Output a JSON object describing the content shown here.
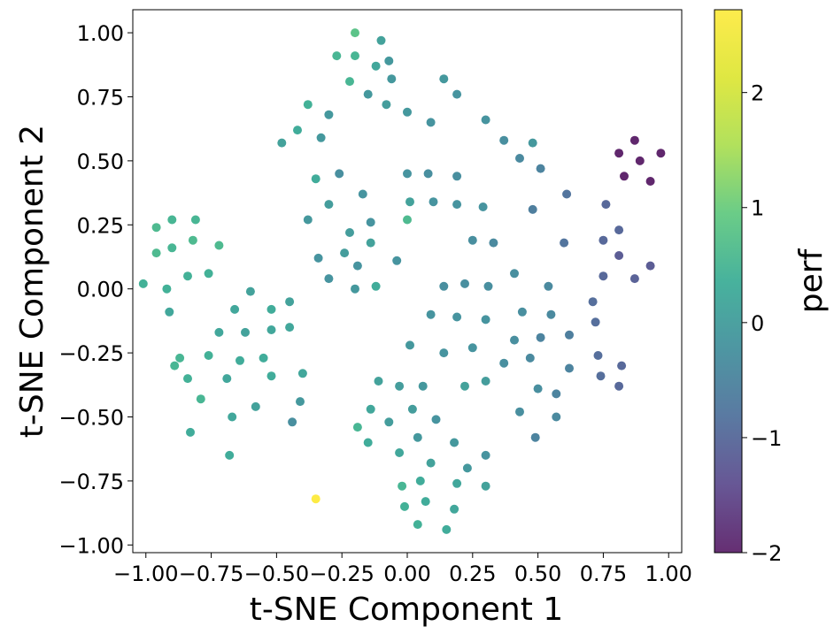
{
  "chart_data": {
    "type": "scatter",
    "xlabel": "t-SNE Component 1",
    "ylabel": "t-SNE Component 2",
    "xlim": [
      -1.05,
      1.05
    ],
    "ylim": [
      -1.03,
      1.09
    ],
    "xticks": [
      -1.0,
      -0.75,
      -0.5,
      -0.25,
      0.0,
      0.25,
      0.5,
      0.75,
      1.0
    ],
    "xtick_labels": [
      "−1.00",
      "−0.75",
      "−0.50",
      "−0.25",
      "0.00",
      "0.25",
      "0.50",
      "0.75",
      "1.00"
    ],
    "yticks": [
      1.0,
      0.75,
      0.5,
      0.25,
      0.0,
      -0.25,
      -0.5,
      -0.75,
      -1.0
    ],
    "ytick_labels": [
      "1.00",
      "0.75",
      "0.50",
      "0.25",
      "0.00",
      "−0.25",
      "−0.50",
      "−0.75",
      "−1.00"
    ],
    "colorbar": {
      "label": "perf",
      "range": [
        -2.0,
        2.72
      ],
      "colormap": "viridis",
      "ticks": [
        2,
        1,
        0,
        -1,
        -2
      ],
      "tick_labels": [
        "2",
        "1",
        "0",
        "−1",
        "−2"
      ]
    },
    "grid": false,
    "points": [
      {
        "x": -0.2,
        "y": 1.0,
        "c": 0.8
      },
      {
        "x": -0.1,
        "y": 0.97,
        "c": 0.1
      },
      {
        "x": -0.27,
        "y": 0.91,
        "c": 0.5
      },
      {
        "x": -0.2,
        "y": 0.91,
        "c": 0.5
      },
      {
        "x": -0.12,
        "y": 0.87,
        "c": 0.2
      },
      {
        "x": -0.07,
        "y": 0.89,
        "c": -0.1
      },
      {
        "x": -0.22,
        "y": 0.81,
        "c": 0.5
      },
      {
        "x": -0.06,
        "y": 0.82,
        "c": -0.1
      },
      {
        "x": 0.14,
        "y": 0.82,
        "c": -0.1
      },
      {
        "x": -0.15,
        "y": 0.76,
        "c": -0.1
      },
      {
        "x": 0.19,
        "y": 0.76,
        "c": -0.2
      },
      {
        "x": -0.38,
        "y": 0.72,
        "c": 0.4
      },
      {
        "x": -0.08,
        "y": 0.72,
        "c": 0.0
      },
      {
        "x": 0.0,
        "y": 0.69,
        "c": -0.1
      },
      {
        "x": -0.3,
        "y": 0.68,
        "c": -0.1
      },
      {
        "x": 0.09,
        "y": 0.65,
        "c": -0.2
      },
      {
        "x": 0.3,
        "y": 0.66,
        "c": -0.2
      },
      {
        "x": -0.42,
        "y": 0.62,
        "c": 0.3
      },
      {
        "x": -0.33,
        "y": 0.59,
        "c": -0.1
      },
      {
        "x": -0.48,
        "y": 0.57,
        "c": 0.1
      },
      {
        "x": 0.37,
        "y": 0.58,
        "c": -0.3
      },
      {
        "x": 0.48,
        "y": 0.57,
        "c": -0.1
      },
      {
        "x": 0.43,
        "y": 0.51,
        "c": -0.4
      },
      {
        "x": 0.51,
        "y": 0.47,
        "c": -0.5
      },
      {
        "x": 0.81,
        "y": 0.53,
        "c": -2.0
      },
      {
        "x": 0.87,
        "y": 0.58,
        "c": -2.0
      },
      {
        "x": 0.97,
        "y": 0.53,
        "c": -2.0
      },
      {
        "x": 0.89,
        "y": 0.5,
        "c": -2.0
      },
      {
        "x": 0.83,
        "y": 0.44,
        "c": -2.0
      },
      {
        "x": 0.93,
        "y": 0.42,
        "c": -2.0
      },
      {
        "x": -0.35,
        "y": 0.43,
        "c": 0.3
      },
      {
        "x": -0.26,
        "y": 0.45,
        "c": -0.3
      },
      {
        "x": 0.0,
        "y": 0.45,
        "c": -0.2
      },
      {
        "x": 0.08,
        "y": 0.45,
        "c": -0.3
      },
      {
        "x": 0.19,
        "y": 0.44,
        "c": -0.3
      },
      {
        "x": -0.17,
        "y": 0.37,
        "c": -0.2
      },
      {
        "x": 0.61,
        "y": 0.37,
        "c": -0.8
      },
      {
        "x": -0.3,
        "y": 0.33,
        "c": 0.0
      },
      {
        "x": 0.01,
        "y": 0.34,
        "c": 0.1
      },
      {
        "x": 0.1,
        "y": 0.34,
        "c": -0.2
      },
      {
        "x": 0.19,
        "y": 0.33,
        "c": -0.2
      },
      {
        "x": 0.29,
        "y": 0.32,
        "c": -0.2
      },
      {
        "x": 0.48,
        "y": 0.31,
        "c": -0.6
      },
      {
        "x": 0.76,
        "y": 0.33,
        "c": -1.0
      },
      {
        "x": -0.38,
        "y": 0.27,
        "c": -0.1
      },
      {
        "x": -0.14,
        "y": 0.26,
        "c": -0.2
      },
      {
        "x": 0.0,
        "y": 0.27,
        "c": 0.6
      },
      {
        "x": -0.22,
        "y": 0.22,
        "c": 0.0
      },
      {
        "x": 0.81,
        "y": 0.23,
        "c": -1.0
      },
      {
        "x": 0.25,
        "y": 0.19,
        "c": -0.3
      },
      {
        "x": 0.33,
        "y": 0.18,
        "c": -0.4
      },
      {
        "x": 0.6,
        "y": 0.18,
        "c": -0.8
      },
      {
        "x": 0.75,
        "y": 0.19,
        "c": -1.0
      },
      {
        "x": -0.14,
        "y": 0.18,
        "c": 0.1
      },
      {
        "x": -0.24,
        "y": 0.14,
        "c": 0.0
      },
      {
        "x": -0.34,
        "y": 0.12,
        "c": -0.2
      },
      {
        "x": -0.04,
        "y": 0.11,
        "c": -0.2
      },
      {
        "x": -0.19,
        "y": 0.09,
        "c": -0.2
      },
      {
        "x": 0.81,
        "y": 0.13,
        "c": -1.2
      },
      {
        "x": 0.93,
        "y": 0.09,
        "c": -1.2
      },
      {
        "x": -0.3,
        "y": 0.04,
        "c": -0.2
      },
      {
        "x": 0.41,
        "y": 0.06,
        "c": -0.3
      },
      {
        "x": 0.75,
        "y": 0.05,
        "c": -1.0
      },
      {
        "x": 0.87,
        "y": 0.04,
        "c": -1.1
      },
      {
        "x": -0.12,
        "y": 0.01,
        "c": 0.3
      },
      {
        "x": -0.2,
        "y": 0.0,
        "c": -0.1
      },
      {
        "x": 0.14,
        "y": 0.01,
        "c": -0.3
      },
      {
        "x": 0.22,
        "y": 0.02,
        "c": -0.3
      },
      {
        "x": 0.31,
        "y": 0.01,
        "c": -0.3
      },
      {
        "x": 0.54,
        "y": 0.01,
        "c": -0.4
      },
      {
        "x": -0.96,
        "y": 0.24,
        "c": 0.6
      },
      {
        "x": -0.9,
        "y": 0.27,
        "c": 0.5
      },
      {
        "x": -0.81,
        "y": 0.27,
        "c": 0.5
      },
      {
        "x": -0.96,
        "y": 0.14,
        "c": 0.6
      },
      {
        "x": -0.9,
        "y": 0.16,
        "c": 0.5
      },
      {
        "x": -0.82,
        "y": 0.19,
        "c": 0.6
      },
      {
        "x": -0.72,
        "y": 0.17,
        "c": 0.6
      },
      {
        "x": -1.01,
        "y": 0.02,
        "c": 0.4
      },
      {
        "x": -0.92,
        "y": 0.0,
        "c": 0.4
      },
      {
        "x": -0.84,
        "y": 0.05,
        "c": 0.4
      },
      {
        "x": -0.76,
        "y": 0.06,
        "c": 0.4
      },
      {
        "x": -0.91,
        "y": -0.09,
        "c": 0.2
      },
      {
        "x": -0.6,
        "y": -0.01,
        "c": 0.1
      },
      {
        "x": -0.66,
        "y": -0.08,
        "c": 0.2
      },
      {
        "x": -0.52,
        "y": -0.08,
        "c": 0.3
      },
      {
        "x": -0.45,
        "y": -0.05,
        "c": 0.1
      },
      {
        "x": -0.72,
        "y": -0.17,
        "c": 0.2
      },
      {
        "x": -0.62,
        "y": -0.17,
        "c": 0.1
      },
      {
        "x": -0.52,
        "y": -0.16,
        "c": 0.2
      },
      {
        "x": -0.45,
        "y": -0.15,
        "c": 0.2
      },
      {
        "x": -0.87,
        "y": -0.27,
        "c": 0.5
      },
      {
        "x": -0.89,
        "y": -0.3,
        "c": 0.5
      },
      {
        "x": -0.76,
        "y": -0.26,
        "c": 0.4
      },
      {
        "x": -0.64,
        "y": -0.28,
        "c": 0.3
      },
      {
        "x": -0.55,
        "y": -0.27,
        "c": 0.3
      },
      {
        "x": -0.84,
        "y": -0.35,
        "c": 0.4
      },
      {
        "x": -0.69,
        "y": -0.35,
        "c": 0.2
      },
      {
        "x": -0.52,
        "y": -0.34,
        "c": 0.3
      },
      {
        "x": -0.79,
        "y": -0.43,
        "c": 0.5
      },
      {
        "x": -0.58,
        "y": -0.46,
        "c": 0.1
      },
      {
        "x": -0.67,
        "y": -0.5,
        "c": 0.2
      },
      {
        "x": -0.4,
        "y": -0.33,
        "c": 0.2
      },
      {
        "x": -0.41,
        "y": -0.44,
        "c": -0.1
      },
      {
        "x": -0.44,
        "y": -0.52,
        "c": -0.3
      },
      {
        "x": -0.83,
        "y": -0.56,
        "c": 0.3
      },
      {
        "x": -0.68,
        "y": -0.65,
        "c": 0.3
      },
      {
        "x": -0.35,
        "y": -0.82,
        "c": 2.72
      },
      {
        "x": 0.09,
        "y": -0.1,
        "c": -0.2
      },
      {
        "x": 0.19,
        "y": -0.11,
        "c": -0.2
      },
      {
        "x": 0.3,
        "y": -0.12,
        "c": -0.2
      },
      {
        "x": 0.44,
        "y": -0.09,
        "c": -0.3
      },
      {
        "x": 0.55,
        "y": -0.1,
        "c": -0.4
      },
      {
        "x": 0.71,
        "y": -0.05,
        "c": -0.9
      },
      {
        "x": 0.72,
        "y": -0.13,
        "c": -0.9
      },
      {
        "x": 0.62,
        "y": -0.18,
        "c": -0.6
      },
      {
        "x": 0.01,
        "y": -0.22,
        "c": -0.1
      },
      {
        "x": 0.14,
        "y": -0.25,
        "c": -0.2
      },
      {
        "x": 0.25,
        "y": -0.23,
        "c": -0.2
      },
      {
        "x": 0.41,
        "y": -0.2,
        "c": -0.3
      },
      {
        "x": 0.51,
        "y": -0.19,
        "c": -0.5
      },
      {
        "x": 0.47,
        "y": -0.27,
        "c": -0.4
      },
      {
        "x": 0.37,
        "y": -0.29,
        "c": -0.3
      },
      {
        "x": 0.73,
        "y": -0.26,
        "c": -0.9
      },
      {
        "x": 0.82,
        "y": -0.3,
        "c": -1.0
      },
      {
        "x": 0.62,
        "y": -0.31,
        "c": -0.5
      },
      {
        "x": 0.74,
        "y": -0.34,
        "c": -0.9
      },
      {
        "x": 0.81,
        "y": -0.38,
        "c": -1.0
      },
      {
        "x": -0.11,
        "y": -0.36,
        "c": 0.1
      },
      {
        "x": -0.03,
        "y": -0.38,
        "c": 0.0
      },
      {
        "x": 0.06,
        "y": -0.38,
        "c": -0.1
      },
      {
        "x": 0.22,
        "y": -0.38,
        "c": 0.1
      },
      {
        "x": 0.3,
        "y": -0.36,
        "c": 0.0
      },
      {
        "x": 0.5,
        "y": -0.39,
        "c": -0.3
      },
      {
        "x": 0.57,
        "y": -0.41,
        "c": -0.5
      },
      {
        "x": -0.14,
        "y": -0.47,
        "c": 0.2
      },
      {
        "x": 0.02,
        "y": -0.47,
        "c": 0.0
      },
      {
        "x": -0.07,
        "y": -0.52,
        "c": 0.0
      },
      {
        "x": 0.11,
        "y": -0.51,
        "c": -0.2
      },
      {
        "x": 0.43,
        "y": -0.48,
        "c": -0.3
      },
      {
        "x": 0.57,
        "y": -0.5,
        "c": -0.4
      },
      {
        "x": -0.19,
        "y": -0.54,
        "c": 0.5
      },
      {
        "x": -0.15,
        "y": -0.6,
        "c": 0.3
      },
      {
        "x": 0.04,
        "y": -0.58,
        "c": -0.1
      },
      {
        "x": 0.18,
        "y": -0.6,
        "c": -0.1
      },
      {
        "x": 0.49,
        "y": -0.58,
        "c": -0.5
      },
      {
        "x": -0.03,
        "y": -0.64,
        "c": 0.2
      },
      {
        "x": 0.3,
        "y": -0.65,
        "c": -0.2
      },
      {
        "x": 0.09,
        "y": -0.68,
        "c": 0.1
      },
      {
        "x": 0.23,
        "y": -0.7,
        "c": -0.1
      },
      {
        "x": -0.02,
        "y": -0.77,
        "c": 0.5
      },
      {
        "x": 0.05,
        "y": -0.75,
        "c": 0.3
      },
      {
        "x": 0.19,
        "y": -0.76,
        "c": 0.2
      },
      {
        "x": 0.3,
        "y": -0.77,
        "c": 0.1
      },
      {
        "x": -0.01,
        "y": -0.85,
        "c": 0.4
      },
      {
        "x": 0.07,
        "y": -0.83,
        "c": 0.3
      },
      {
        "x": 0.18,
        "y": -0.86,
        "c": 0.2
      },
      {
        "x": 0.04,
        "y": -0.92,
        "c": 0.4
      },
      {
        "x": 0.15,
        "y": -0.94,
        "c": 0.3
      }
    ]
  }
}
